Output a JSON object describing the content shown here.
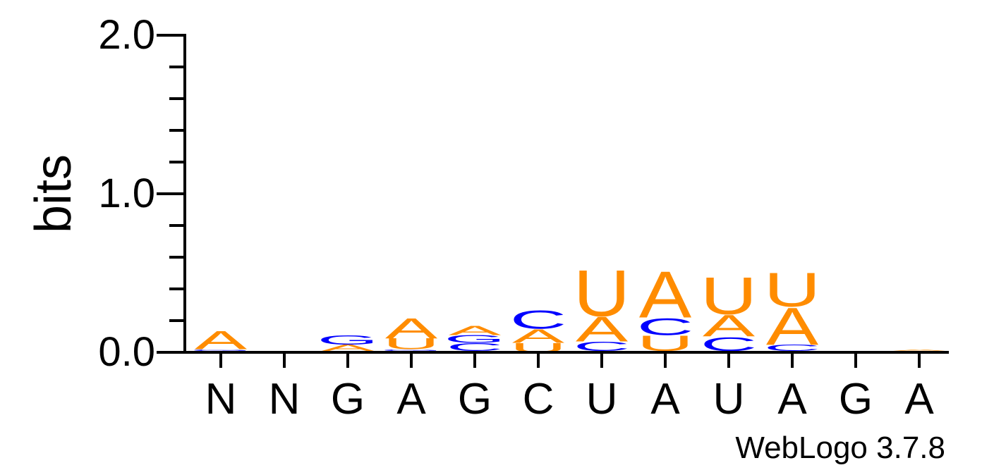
{
  "chart_data": {
    "type": "sequence-logo",
    "ylabel": "bits",
    "ylim": [
      0,
      2.0
    ],
    "yticks": [
      "0.0",
      "1.0",
      "2.0"
    ],
    "credit": "WebLogo 3.7.8",
    "colors": {
      "A": "#ff8c00",
      "U": "#ff8c00",
      "G": "#0000ff",
      "C": "#0000ff"
    },
    "positions": [
      {
        "label": "N",
        "letters": [
          {
            "base": "U",
            "bits": 0.01
          },
          {
            "base": "G",
            "bits": 0.01
          },
          {
            "base": "A",
            "bits": 0.12
          }
        ]
      },
      {
        "label": "N",
        "letters": [
          {
            "base": "A",
            "bits": 0.01
          }
        ]
      },
      {
        "label": "G",
        "letters": [
          {
            "base": "U",
            "bits": 0.01
          },
          {
            "base": "A",
            "bits": 0.04
          },
          {
            "base": "G",
            "bits": 0.06
          }
        ]
      },
      {
        "label": "A",
        "letters": [
          {
            "base": "C",
            "bits": 0.01
          },
          {
            "base": "G",
            "bits": 0.01
          },
          {
            "base": "U",
            "bits": 0.07
          },
          {
            "base": "A",
            "bits": 0.13
          }
        ]
      },
      {
        "label": "G",
        "letters": [
          {
            "base": "U",
            "bits": 0.01
          },
          {
            "base": "C",
            "bits": 0.05
          },
          {
            "base": "G",
            "bits": 0.05
          },
          {
            "base": "A",
            "bits": 0.06
          }
        ]
      },
      {
        "label": "C",
        "letters": [
          {
            "base": "U",
            "bits": 0.06
          },
          {
            "base": "A",
            "bits": 0.09
          },
          {
            "base": "C",
            "bits": 0.12
          }
        ]
      },
      {
        "label": "U",
        "letters": [
          {
            "base": "G",
            "bits": 0.01
          },
          {
            "base": "C",
            "bits": 0.06
          },
          {
            "base": "A",
            "bits": 0.16
          },
          {
            "base": "U",
            "bits": 0.3
          }
        ]
      },
      {
        "label": "A",
        "letters": [
          {
            "base": "G",
            "bits": 0.01
          },
          {
            "base": "U",
            "bits": 0.1
          },
          {
            "base": "C",
            "bits": 0.11
          },
          {
            "base": "A",
            "bits": 0.3
          }
        ]
      },
      {
        "label": "U",
        "letters": [
          {
            "base": "G",
            "bits": 0.01
          },
          {
            "base": "C",
            "bits": 0.09
          },
          {
            "base": "A",
            "bits": 0.14
          },
          {
            "base": "U",
            "bits": 0.24
          }
        ]
      },
      {
        "label": "A",
        "letters": [
          {
            "base": "G",
            "bits": 0.01
          },
          {
            "base": "C",
            "bits": 0.04
          },
          {
            "base": "A",
            "bits": 0.24
          },
          {
            "base": "U",
            "bits": 0.22
          }
        ]
      },
      {
        "label": "G",
        "letters": []
      },
      {
        "label": "A",
        "letters": [
          {
            "base": "U",
            "bits": 0.01
          },
          {
            "base": "A",
            "bits": 0.01
          }
        ]
      }
    ]
  }
}
